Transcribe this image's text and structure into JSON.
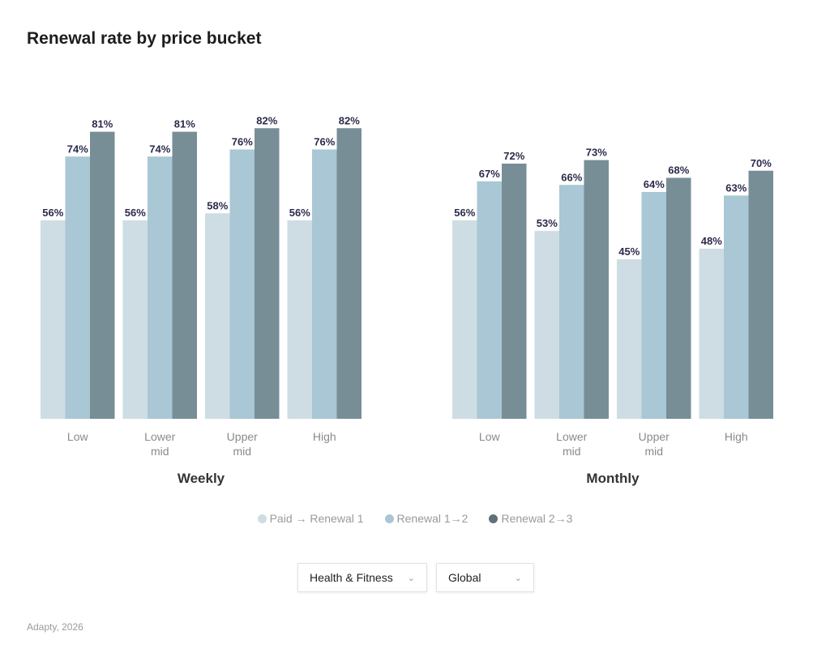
{
  "title": "Renewal rate by price bucket",
  "colors": {
    "Paid → Renewal 1": "#cddde3",
    "Renewal 1→2": "#a9c7d4",
    "Renewal 2→3": "#788e97",
    "label": "#2b2b4b",
    "legend_dark": "#5f7178"
  },
  "chart_data": [
    {
      "type": "bar",
      "title": "Weekly",
      "categories": [
        "Low",
        "Lower mid",
        "Upper mid",
        "High"
      ],
      "ylim": [
        0,
        100
      ],
      "grid": false,
      "legend": "bottom",
      "series": [
        {
          "name": "Paid → Renewal 1",
          "values": [
            56,
            56,
            58,
            56
          ]
        },
        {
          "name": "Renewal 1→2",
          "values": [
            74,
            74,
            76,
            76
          ]
        },
        {
          "name": "Renewal 2→3",
          "values": [
            81,
            81,
            82,
            82
          ]
        }
      ]
    },
    {
      "type": "bar",
      "title": "Monthly",
      "categories": [
        "Low",
        "Lower mid",
        "Upper mid",
        "High"
      ],
      "ylim": [
        0,
        100
      ],
      "grid": false,
      "legend": "bottom",
      "series": [
        {
          "name": "Paid → Renewal 1",
          "values": [
            56,
            53,
            45,
            48
          ]
        },
        {
          "name": "Renewal 1→2",
          "values": [
            67,
            66,
            64,
            63
          ]
        },
        {
          "name": "Renewal 2→3",
          "values": [
            72,
            73,
            68,
            70
          ]
        }
      ]
    }
  ],
  "legend": [
    "Paid → Renewal 1",
    "Renewal 1→2",
    "Renewal 2→3"
  ],
  "filters": {
    "category": "Health & Fitness",
    "region": "Global",
    "chevron": "chevron-down-icon"
  },
  "footer": "Adapty, 2026"
}
